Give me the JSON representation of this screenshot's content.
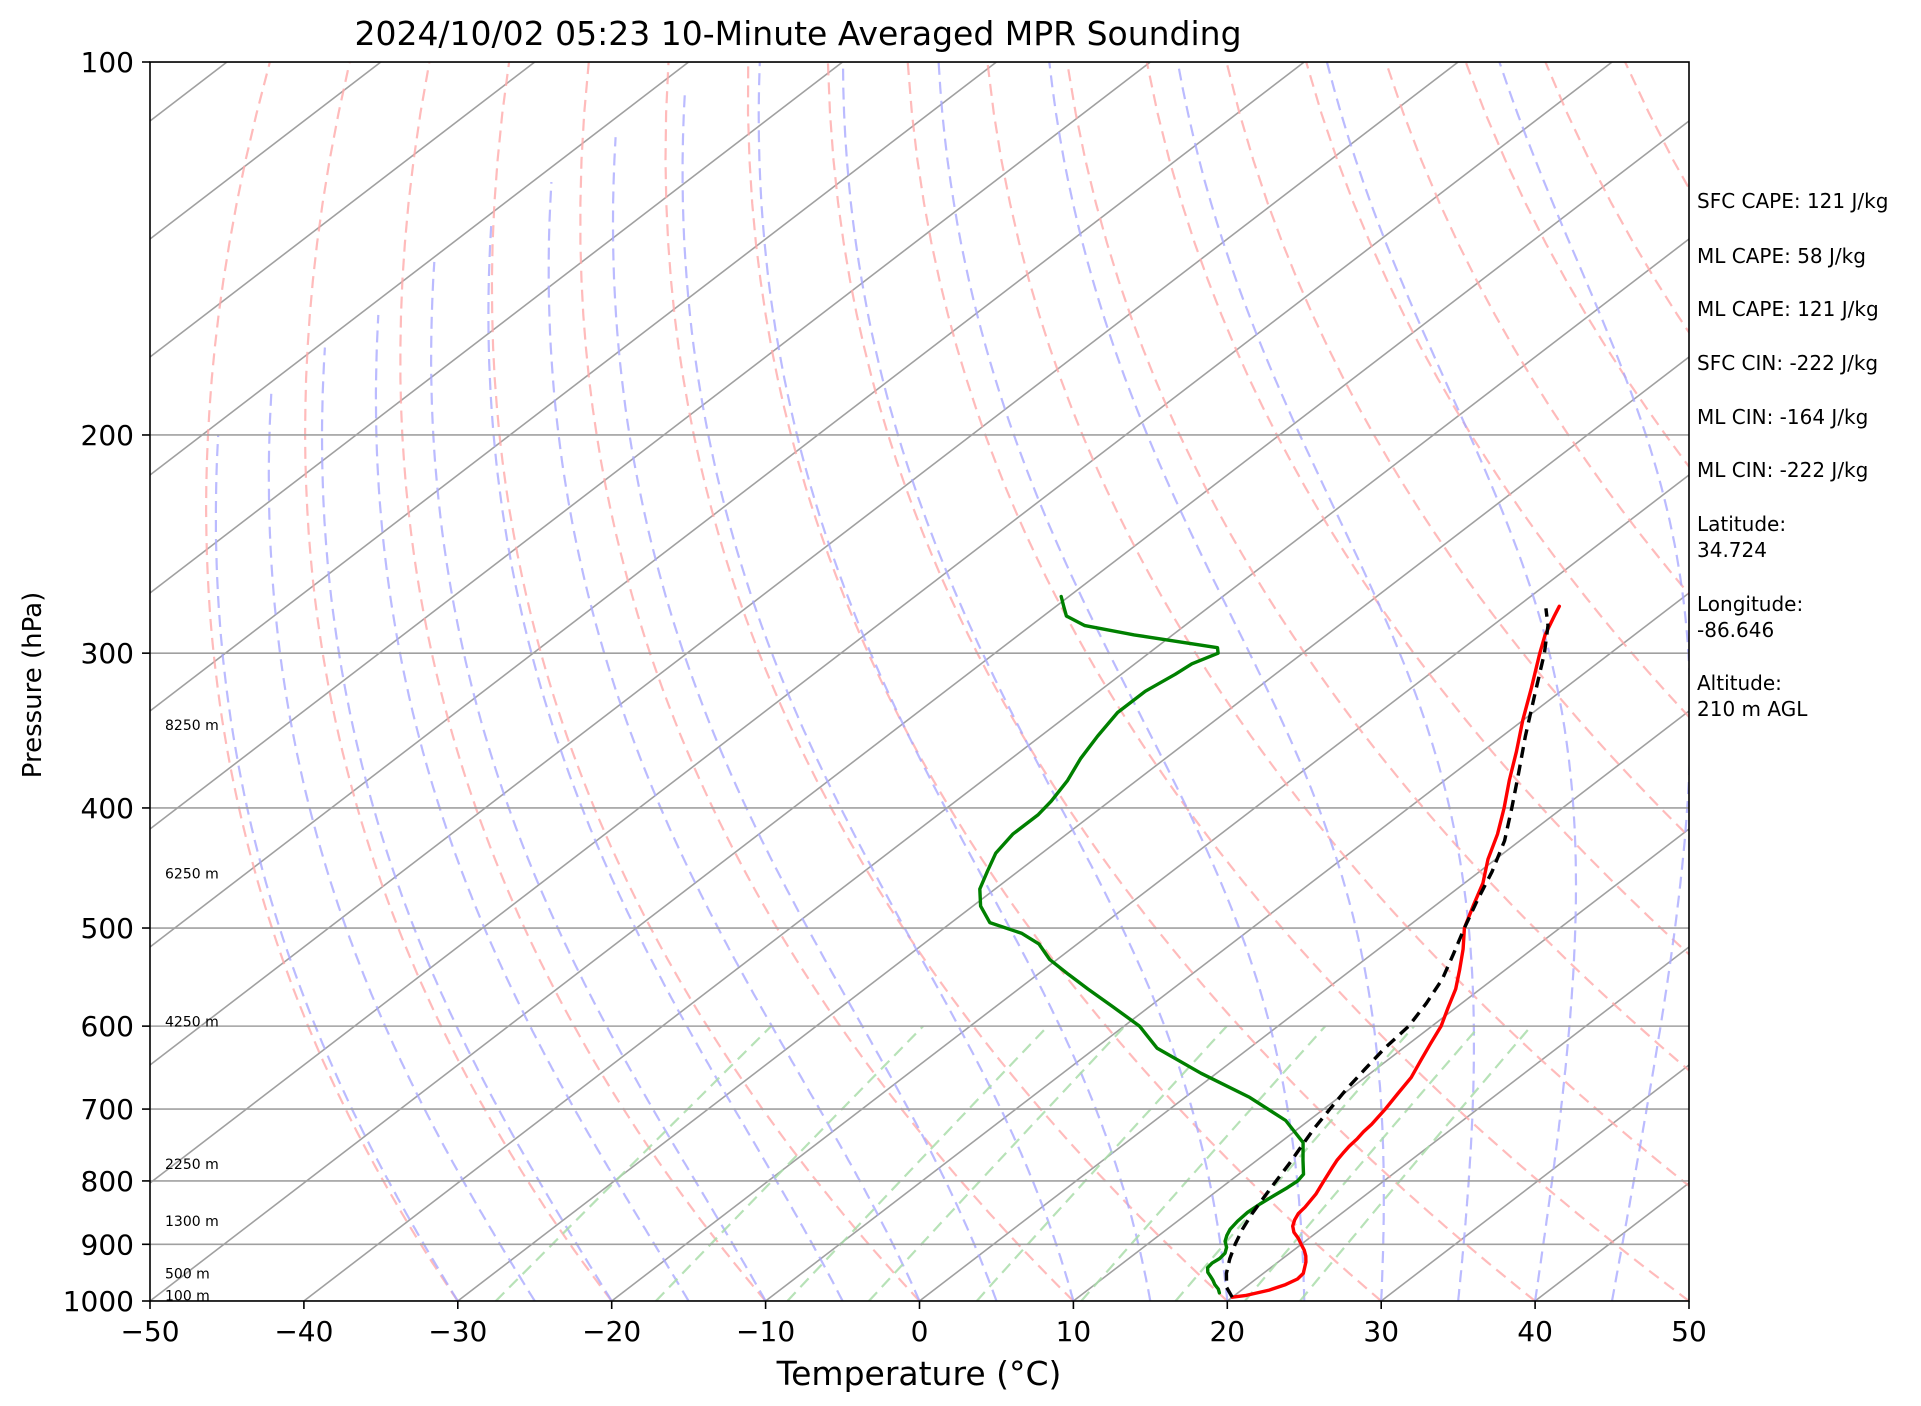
{
  "chart_data": {
    "type": "line",
    "title": "2024/10/02 05:23 10-Minute Averaged MPR Sounding",
    "xlabel": "Temperature (°C)",
    "ylabel": "Pressure (hPa)",
    "xlim": [
      -50,
      50
    ],
    "ylim": [
      1000,
      100
    ],
    "y_scale": "log",
    "x_ticks": [
      "−50",
      "−40",
      "−30",
      "−20",
      "−10",
      "0",
      "10",
      "20",
      "30",
      "40",
      "50"
    ],
    "y_ticks": [
      {
        "p": 1000,
        "label": "1000"
      },
      {
        "p": 900,
        "label": "900"
      },
      {
        "p": 800,
        "label": "800"
      },
      {
        "p": 700,
        "label": "700"
      },
      {
        "p": 600,
        "label": "600"
      },
      {
        "p": 500,
        "label": "500"
      },
      {
        "p": 400,
        "label": "400"
      },
      {
        "p": 300,
        "label": "300"
      },
      {
        "p": 200,
        "label": "200"
      },
      {
        "p": 100,
        "label": "100"
      }
    ],
    "height_labels": [
      {
        "p": 990,
        "label": "100 m"
      },
      {
        "p": 950,
        "label": "500 m"
      },
      {
        "p": 862,
        "label": "1300 m"
      },
      {
        "p": 775,
        "label": "2250 m"
      },
      {
        "p": 595,
        "label": "4250 m"
      },
      {
        "p": 452,
        "label": "6250 m"
      },
      {
        "p": 343,
        "label": "8250 m"
      }
    ],
    "series": [
      {
        "color": "#ff0000",
        "p": [
          993,
          990,
          980,
          970,
          960,
          950,
          940,
          930,
          920,
          910,
          900,
          890,
          880,
          870,
          860,
          850,
          840,
          830,
          820,
          810,
          800,
          790,
          780,
          770,
          760,
          750,
          740,
          730,
          720,
          710,
          700,
          680,
          660,
          640,
          620,
          600,
          580,
          560,
          540,
          520,
          500,
          480,
          460,
          440,
          420,
          400,
          380,
          360,
          340,
          320,
          300,
          290,
          280,
          275
        ],
        "values": [
          20.0,
          20.7,
          21.8,
          22.4,
          22.7,
          22.6,
          22.2,
          21.8,
          21.3,
          20.7,
          20.0,
          19.3,
          18.5,
          17.9,
          17.5,
          17.2,
          17.1,
          16.9,
          16.7,
          16.4,
          16.1,
          15.8,
          15.5,
          15.2,
          15.0,
          14.8,
          14.7,
          14.5,
          14.4,
          14.2,
          14.0,
          13.5,
          13.0,
          12.2,
          11.4,
          10.6,
          9.5,
          8.4,
          7.0,
          5.5,
          3.8,
          2.5,
          1.2,
          -0.5,
          -2.0,
          -3.8,
          -5.8,
          -7.8,
          -10.0,
          -12.2,
          -14.6,
          -15.8,
          -16.8,
          -17.3
        ]
      },
      {
        "color": "#008000",
        "p": [
          985,
          978,
          970,
          962,
          955,
          948,
          940,
          932,
          924,
          915,
          905,
          895,
          885,
          875,
          862,
          848,
          835,
          822,
          810,
          800,
          790,
          770,
          745,
          715,
          685,
          655,
          625,
          600,
          578,
          560,
          545,
          530,
          515,
          505,
          495,
          480,
          465,
          450,
          435,
          420,
          405,
          395,
          380,
          365,
          350,
          335,
          322,
          312,
          306,
          300,
          297,
          290,
          285,
          280,
          275,
          270
        ],
        "values": [
          18.8,
          18.4,
          17.8,
          17.3,
          16.8,
          16.3,
          15.9,
          15.8,
          15.9,
          15.8,
          15.4,
          14.8,
          14.4,
          14.1,
          13.9,
          13.8,
          13.9,
          14.1,
          14.3,
          14.4,
          14.2,
          13.0,
          11.5,
          8.5,
          4.2,
          -1.0,
          -6.0,
          -9.0,
          -12.5,
          -15.5,
          -18.0,
          -20.5,
          -22.5,
          -24.5,
          -27.5,
          -29.5,
          -31.0,
          -32.0,
          -33.0,
          -33.5,
          -33.5,
          -33.8,
          -34.5,
          -35.5,
          -36.3,
          -37.0,
          -37.0,
          -36.5,
          -36.3,
          -35.5,
          -36.0,
          -42.5,
          -46.5,
          -48.5,
          -49.5,
          -50.5
        ]
      },
      {
        "color": "#000000",
        "dashed": true,
        "p": [
          993,
          975,
          950,
          925,
          900,
          875,
          850,
          825,
          800,
          775,
          750,
          725,
          700,
          675,
          650,
          625,
          600,
          575,
          550,
          525,
          500,
          475,
          450,
          425,
          400,
          375,
          350,
          325,
          300,
          285,
          276
        ],
        "values": [
          20.0,
          18.8,
          17.6,
          16.6,
          15.7,
          14.9,
          14.2,
          13.6,
          13.0,
          12.4,
          11.7,
          11.0,
          10.4,
          9.8,
          9.3,
          8.8,
          8.5,
          7.7,
          6.7,
          5.3,
          3.8,
          2.3,
          0.8,
          -1.0,
          -3.3,
          -5.8,
          -8.5,
          -11.3,
          -14.3,
          -16.4,
          -18.0
        ]
      }
    ],
    "skew_lines": {
      "color": "#a0a0a0"
    },
    "dry_adiabats": {
      "color": "#ffaaaa"
    },
    "moist_adiabats": {
      "color": "#aaaaff"
    },
    "mixing_ratio_lines": {
      "color": "#aaddaa"
    }
  },
  "side_panel": [
    {
      "id": "sfc-cape",
      "lines": [
        "SFC CAPE: 121 J/kg"
      ]
    },
    {
      "id": "ml-cape-1",
      "lines": [
        "ML CAPE: 58 J/kg"
      ]
    },
    {
      "id": "ml-cape-2",
      "lines": [
        "ML CAPE: 121 J/kg"
      ]
    },
    {
      "id": "sfc-cin",
      "lines": [
        "SFC CIN: -222 J/kg"
      ]
    },
    {
      "id": "ml-cin-1",
      "lines": [
        "ML CIN: -164 J/kg"
      ]
    },
    {
      "id": "ml-cin-2",
      "lines": [
        "ML CIN: -222 J/kg"
      ]
    },
    {
      "id": "latitude",
      "lines": [
        "Latitude:",
        "34.724"
      ]
    },
    {
      "id": "longitude",
      "lines": [
        "Longitude:",
        "-86.646"
      ]
    },
    {
      "id": "altitude",
      "lines": [
        "Altitude:",
        "210 m AGL"
      ]
    }
  ]
}
